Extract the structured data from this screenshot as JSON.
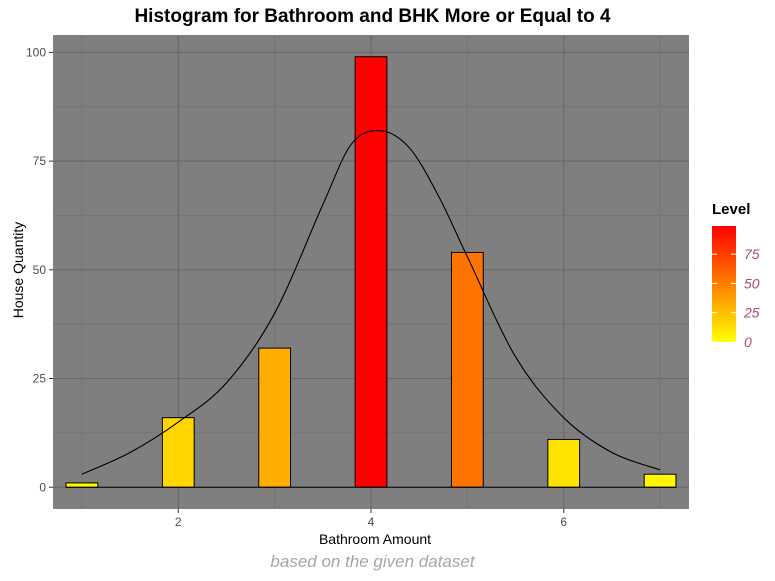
{
  "chart_data": {
    "type": "bar",
    "title": "Histogram for Bathroom and BHK More or Equal to 4",
    "xlabel": "Bathroom Amount",
    "ylabel": "House Quantity",
    "caption": "based on the given dataset",
    "x": [
      1,
      2,
      3,
      4,
      5,
      6,
      7
    ],
    "values": [
      1,
      16,
      32,
      99,
      54,
      11,
      3
    ],
    "xlim": [
      0.7,
      7.3
    ],
    "ylim": [
      -5,
      104
    ],
    "xticks": [
      2,
      4,
      6
    ],
    "yticks": [
      0,
      25,
      50,
      75,
      100
    ],
    "density_curve": {
      "x": [
        1,
        1.5,
        2,
        2.5,
        3,
        3.5,
        3.8,
        4.1,
        4.4,
        4.7,
        5,
        5.5,
        6,
        6.5,
        7
      ],
      "y": [
        3,
        8,
        15,
        24,
        40,
        65,
        79,
        82,
        78,
        67,
        53,
        30,
        16,
        8,
        4
      ]
    },
    "legend": {
      "title": "Level",
      "ticks": [
        0,
        25,
        50,
        75
      ],
      "range": [
        0,
        99
      ],
      "colors": [
        "#ffff00",
        "#ff0000"
      ],
      "placement": "right"
    },
    "panel_background": "#7f7f7f",
    "grid": true
  }
}
